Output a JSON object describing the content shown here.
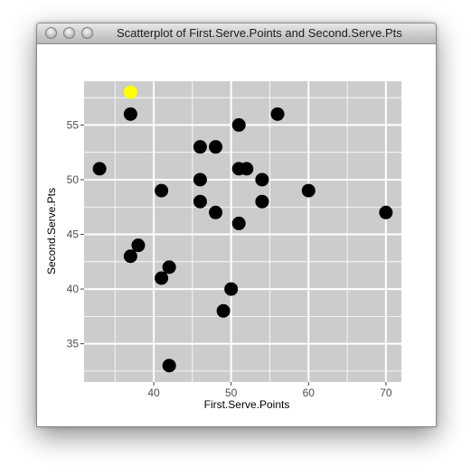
{
  "window": {
    "title": "Scatterplot of First.Serve.Points and Second.Serve.Pts",
    "buttons": [
      "close-icon",
      "minimize-icon",
      "zoom-icon"
    ]
  },
  "chart_data": {
    "type": "scatter",
    "title": "",
    "xlabel": "First.Serve.Points",
    "ylabel": "Second.Serve.Pts",
    "xlim": [
      31,
      72
    ],
    "ylim": [
      31.5,
      59
    ],
    "x_ticks": [
      40,
      50,
      60,
      70
    ],
    "y_ticks": [
      35,
      40,
      45,
      50,
      55
    ],
    "grid": true,
    "colors": {
      "panel": "#cccccc",
      "grid": "#ffffff",
      "point": "#000000",
      "highlight": "#ffff00"
    },
    "points": [
      {
        "x": 37,
        "y": 58,
        "highlight": true
      },
      {
        "x": 37,
        "y": 56
      },
      {
        "x": 56,
        "y": 56
      },
      {
        "x": 51,
        "y": 55
      },
      {
        "x": 46,
        "y": 53
      },
      {
        "x": 48,
        "y": 53
      },
      {
        "x": 33,
        "y": 51
      },
      {
        "x": 51,
        "y": 51
      },
      {
        "x": 52,
        "y": 51
      },
      {
        "x": 46,
        "y": 50
      },
      {
        "x": 54,
        "y": 50
      },
      {
        "x": 41,
        "y": 49
      },
      {
        "x": 60,
        "y": 49
      },
      {
        "x": 46,
        "y": 48
      },
      {
        "x": 54,
        "y": 48
      },
      {
        "x": 48,
        "y": 47
      },
      {
        "x": 70,
        "y": 47
      },
      {
        "x": 51,
        "y": 46
      },
      {
        "x": 38,
        "y": 44
      },
      {
        "x": 37,
        "y": 43
      },
      {
        "x": 42,
        "y": 42
      },
      {
        "x": 41,
        "y": 41
      },
      {
        "x": 50,
        "y": 40
      },
      {
        "x": 49,
        "y": 38
      },
      {
        "x": 42,
        "y": 33
      }
    ]
  }
}
